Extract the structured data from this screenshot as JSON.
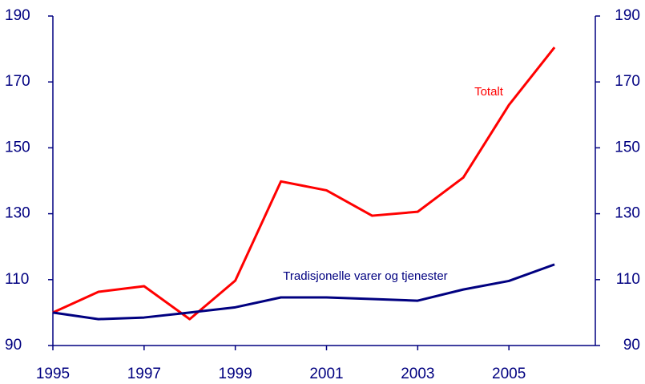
{
  "chart_data": {
    "type": "line",
    "x": [
      1995,
      1996,
      1997,
      1998,
      1999,
      2000,
      2001,
      2002,
      2003,
      2004,
      2005,
      2006
    ],
    "series": [
      {
        "name": "Totalt",
        "color": "#ff0000",
        "values": [
          100,
          106.3,
          108,
          98,
          109.7,
          139.8,
          137.1,
          129.4,
          130.6,
          141,
          163,
          180.5
        ]
      },
      {
        "name": "Tradisjonelle varer og tjenester",
        "color": "#000080",
        "values": [
          100,
          98,
          98.5,
          100,
          101.6,
          104.6,
          104.6,
          104.1,
          103.6,
          107,
          109.6,
          114.6
        ]
      }
    ],
    "xlim": [
      1995,
      2007
    ],
    "xticks": [
      1995,
      1997,
      1999,
      2001,
      2003,
      2005
    ],
    "ylim": [
      90,
      190
    ],
    "yticks": [
      90,
      110,
      130,
      150,
      170,
      190
    ],
    "y2lim": [
      90,
      190
    ],
    "y2ticks": [
      90,
      110,
      130,
      150,
      170,
      190
    ],
    "grid": false,
    "axis_color": "#000080"
  }
}
